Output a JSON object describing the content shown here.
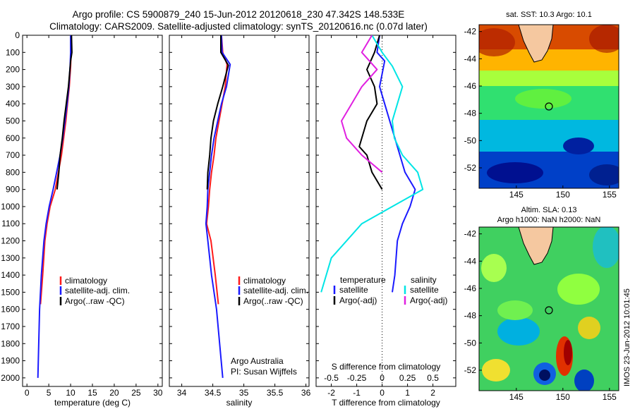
{
  "header": {
    "title_line1": "Argo profile: CS 5900879_240 15-Jun-2012 20120618_230 47.342S 148.533E",
    "title_line2": "Climatology: CARS2009. Satellite-adjusted climatology: synTS_20120616.nc (0.07d later)"
  },
  "colors": {
    "climatology": "#ff1a1a",
    "satellite": "#1a1aff",
    "argo": "#000000",
    "satellite_s": "#00e5e5",
    "argo_s": "#e020e0"
  },
  "chart_data": [
    {
      "type": "line",
      "xlabel": "temperature (deg C)",
      "ylabel": "",
      "xlim": [
        -1,
        31
      ],
      "ylim": [
        2050,
        0
      ],
      "xticks": [
        "0",
        "5",
        "10",
        "15",
        "20",
        "25",
        "30"
      ],
      "xtick_values": [
        0,
        5,
        10,
        15,
        20,
        25,
        30
      ],
      "yticks": [
        "0",
        "100",
        "200",
        "300",
        "400",
        "500",
        "600",
        "700",
        "800",
        "900",
        "1000",
        "1100",
        "1200",
        "1300",
        "1400",
        "1500",
        "1600",
        "1700",
        "1800",
        "1900",
        "2000"
      ],
      "ytick_values": [
        0,
        100,
        200,
        300,
        400,
        500,
        600,
        700,
        800,
        900,
        1000,
        1100,
        1200,
        1300,
        1400,
        1500,
        1600,
        1700,
        1800,
        1900,
        2000
      ],
      "legend": [
        "climatology",
        "satellite-adj. clim.",
        "Argo(..raw -QC)"
      ],
      "legend_location": "lower-right",
      "series": [
        {
          "name": "climatology",
          "color_key": "climatology",
          "x": [
            10.1,
            10.1,
            10.0,
            9.7,
            9.3,
            8.9,
            8.4,
            7.9,
            7.2,
            6.5,
            5.3,
            4.6,
            4.1,
            3.6,
            3.1
          ],
          "y": [
            0,
            100,
            180,
            300,
            400,
            500,
            600,
            700,
            800,
            900,
            1000,
            1100,
            1200,
            1400,
            1570
          ]
        },
        {
          "name": "satellite-adj. clim.",
          "color_key": "satellite",
          "x": [
            10.0,
            10.0,
            9.9,
            9.6,
            9.2,
            8.7,
            8.2,
            7.6,
            6.8,
            6.0,
            5.1,
            4.4,
            3.9,
            3.3,
            2.9,
            2.5
          ],
          "y": [
            0,
            100,
            180,
            300,
            400,
            500,
            600,
            700,
            800,
            900,
            1000,
            1100,
            1200,
            1400,
            1600,
            2000
          ]
        },
        {
          "name": "Argo(..raw -QC)",
          "color_key": "argo",
          "x": [
            10.2,
            10.3,
            10.0,
            9.5,
            9.0,
            8.5,
            8.1,
            7.6,
            7.3,
            6.9
          ],
          "y": [
            0,
            100,
            150,
            300,
            400,
            500,
            600,
            700,
            800,
            900
          ]
        }
      ]
    },
    {
      "type": "line",
      "xlabel": "salinity",
      "ylabel": "",
      "xlim": [
        33.8,
        36.05
      ],
      "ylim": [
        2050,
        0
      ],
      "xticks": [
        "34",
        "34.5",
        "35",
        "35.5",
        "36"
      ],
      "xtick_values": [
        34,
        34.5,
        35,
        35.5,
        36
      ],
      "legend": [
        "climatology",
        "satellite-adj. clim.",
        "Argo(..raw -QC)"
      ],
      "legend_location": "lower-right",
      "annotation": [
        "Argo Australia",
        "PI: Susan Wijffels"
      ],
      "series": [
        {
          "name": "climatology",
          "color_key": "climatology",
          "x": [
            34.64,
            34.66,
            34.73,
            34.7,
            34.65,
            34.6,
            34.55,
            34.52,
            34.48,
            34.45,
            34.43,
            34.4,
            34.47,
            34.54,
            34.59
          ],
          "y": [
            0,
            100,
            170,
            300,
            400,
            500,
            600,
            700,
            800,
            900,
            1000,
            1100,
            1200,
            1400,
            1570
          ]
        },
        {
          "name": "satellite-adj. clim.",
          "color_key": "satellite",
          "x": [
            34.64,
            34.65,
            34.78,
            34.72,
            34.64,
            34.58,
            34.52,
            34.48,
            34.45,
            34.42,
            34.41,
            34.39,
            34.42,
            34.48,
            34.56,
            34.66
          ],
          "y": [
            0,
            100,
            170,
            300,
            400,
            500,
            600,
            700,
            800,
            900,
            1000,
            1100,
            1200,
            1400,
            1600,
            2000
          ]
        },
        {
          "name": "Argo(..raw -QC)",
          "color_key": "argo",
          "x": [
            34.63,
            34.63,
            34.75,
            34.66,
            34.58,
            34.51,
            34.47,
            34.45,
            34.42,
            34.41
          ],
          "y": [
            0,
            100,
            175,
            300,
            400,
            500,
            600,
            700,
            800,
            900
          ]
        }
      ]
    },
    {
      "type": "line",
      "xlabel": "T difference from climatology",
      "xlabel_top": "S difference from climatology",
      "xlim": [
        -2.6,
        2.9
      ],
      "ylim": [
        2050,
        0
      ],
      "xticks": [
        "-2",
        "-1",
        "0",
        "1",
        "2"
      ],
      "xtick_values": [
        -2,
        -1,
        0,
        1,
        2
      ],
      "xticks_s": [
        "-0.5",
        "-0.25",
        "0",
        "0.25",
        "0.5"
      ],
      "xtick_s_values": [
        -0.5,
        -0.25,
        0,
        0.25,
        0.5
      ],
      "legend_groups": [
        {
          "title": "temperature",
          "entries": [
            "satellite",
            "Argo(-adj)"
          ]
        },
        {
          "title": "salinity",
          "entries": [
            "satellite",
            "Argo(-adj)"
          ]
        }
      ],
      "series": [
        {
          "name": "satellite",
          "group": "temperature",
          "color_key": "satellite",
          "x": [
            -0.1,
            -0.2,
            0.1,
            -0.1,
            0.1,
            0.3,
            0.5,
            0.7,
            0.9,
            1.3,
            1.1,
            0.8,
            0.6,
            0.5,
            0.4
          ],
          "y": [
            0,
            100,
            150,
            300,
            400,
            500,
            600,
            700,
            800,
            900,
            1000,
            1100,
            1200,
            1400,
            1500
          ]
        },
        {
          "name": "Argo(-adj)",
          "group": "temperature",
          "color_key": "argo",
          "x": [
            -0.1,
            -0.3,
            -0.6,
            -0.3,
            -0.2,
            -0.6,
            -0.9,
            -0.6,
            -0.4,
            0.0
          ],
          "y": [
            0,
            100,
            200,
            300,
            400,
            500,
            650,
            700,
            800,
            900
          ]
        },
        {
          "name": "satellite",
          "group": "salinity",
          "color_key": "satellite_s",
          "x": [
            -0.1,
            0.0,
            0.1,
            0.2,
            0.15,
            0.1,
            0.12,
            0.2,
            0.35,
            0.4,
            0.1,
            -0.2,
            -0.5,
            -0.6
          ],
          "y": [
            0,
            100,
            180,
            300,
            400,
            500,
            600,
            700,
            800,
            900,
            1000,
            1100,
            1300,
            1500
          ]
        },
        {
          "name": "Argo(-adj)",
          "group": "salinity",
          "color_key": "argo_s",
          "x": [
            -0.1,
            -0.2,
            -0.05,
            -0.2,
            -0.3,
            -0.4,
            -0.35,
            -0.2,
            0.0
          ],
          "y": [
            0,
            100,
            200,
            300,
            400,
            500,
            600,
            700,
            800
          ]
        }
      ]
    },
    {
      "type": "heatmap",
      "title": "sat. SST: 10.3  Argo: 10.1",
      "xlim": [
        141,
        156
      ],
      "ylim": [
        -53.5,
        -41.5
      ],
      "xticks": [
        "145",
        "150",
        "155"
      ],
      "xtick_values": [
        145,
        150,
        155
      ],
      "yticks": [
        "-42",
        "-44",
        "-46",
        "-48",
        "-50",
        "-52"
      ],
      "ytick_values": [
        -42,
        -44,
        -46,
        -48,
        -50,
        -52
      ],
      "marker": {
        "lon": 148.533,
        "lat": -47.342
      },
      "colormap": "jet"
    },
    {
      "type": "heatmap",
      "title": "Altim. SLA: 0.13",
      "subtitle": "Argo h1000: NaN h2000: NaN",
      "xlim": [
        141,
        156
      ],
      "ylim": [
        -53.5,
        -41.5
      ],
      "xticks": [
        "145",
        "150",
        "155"
      ],
      "xtick_values": [
        145,
        150,
        155
      ],
      "yticks": [
        "-42",
        "-44",
        "-46",
        "-48",
        "-50",
        "-52"
      ],
      "ytick_values": [
        -42,
        -44,
        -46,
        -48,
        -50,
        -52
      ],
      "marker": {
        "lon": 148.533,
        "lat": -47.342
      },
      "colormap": "jet"
    }
  ],
  "footer": {
    "stamp": "IMOS 23-Jun-2012 10:01:45"
  }
}
